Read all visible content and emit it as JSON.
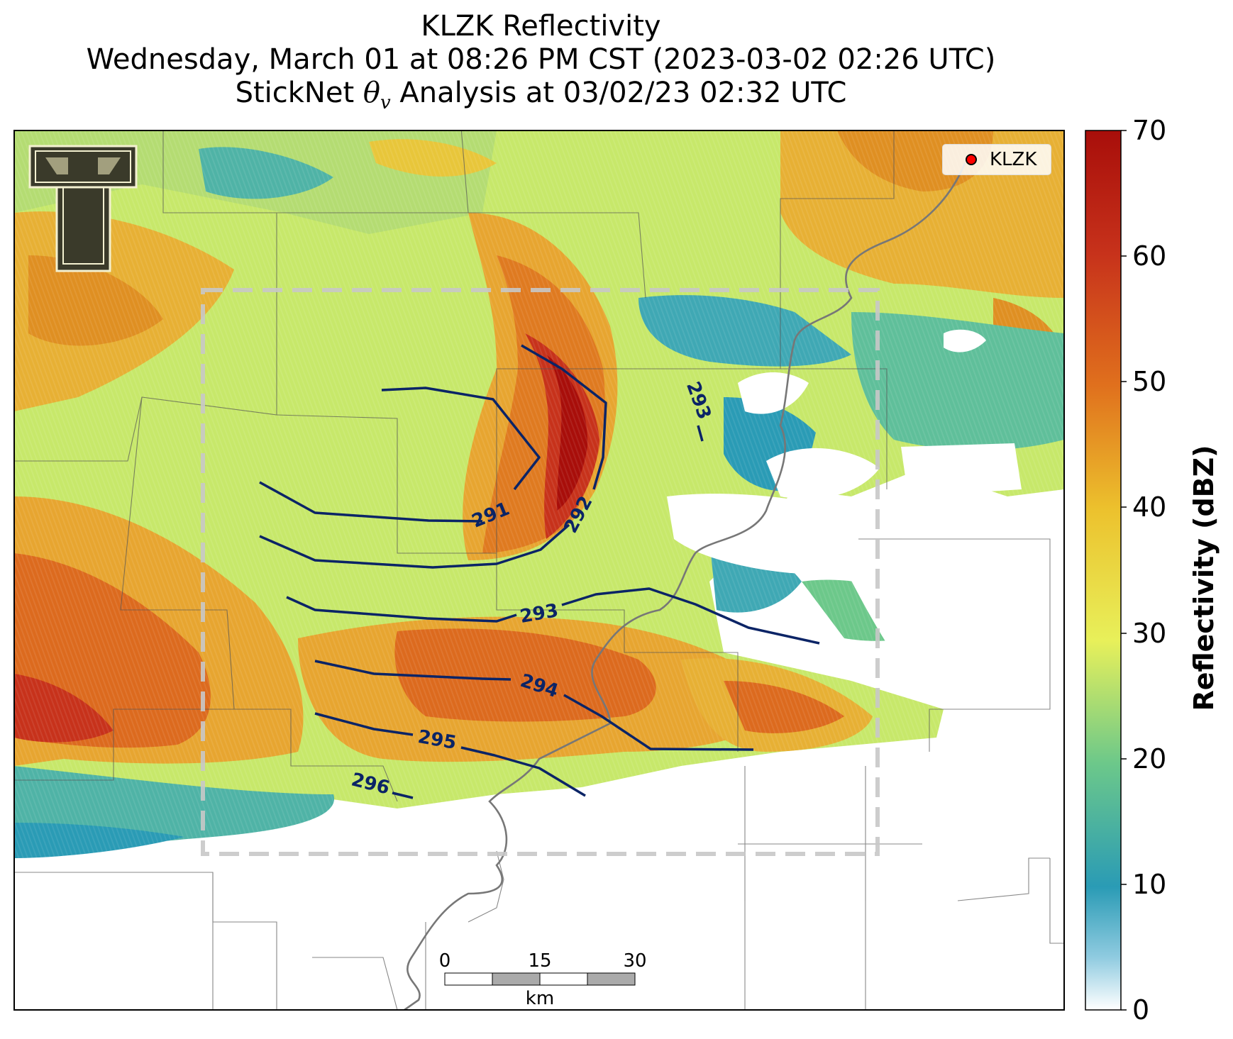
{
  "title": {
    "line1": "KLZK Reflectivity",
    "line2": "Wednesday, March 01 at 08:26 PM CST (2023-03-02 02:26 UTC)",
    "line3_prefix": "StickNet ",
    "line3_symbol": "θ",
    "line3_subscript": "v",
    "line3_suffix": " Analysis at 03/02/23 02:32 UTC"
  },
  "legend": {
    "label": "KLZK",
    "marker_color": "#ff0000"
  },
  "logo": {
    "icon": "texas-tech-double-t-logo"
  },
  "colorbar": {
    "label": "Reflectivity (dBZ)",
    "ticks": [
      "0",
      "10",
      "20",
      "30",
      "40",
      "50",
      "60",
      "70"
    ],
    "colors": [
      "#ffffff",
      "#2a9bb5",
      "#6cc88a",
      "#e8f05a",
      "#ecc12d",
      "#e0701d",
      "#c7321b",
      "#a80e0a"
    ]
  },
  "contours": {
    "color": "#0b2466",
    "labels": [
      "291",
      "292",
      "293",
      "293",
      "294",
      "295",
      "296"
    ]
  },
  "scale_bar": {
    "ticks": [
      "0",
      "15",
      "30"
    ],
    "unit": "km"
  }
}
